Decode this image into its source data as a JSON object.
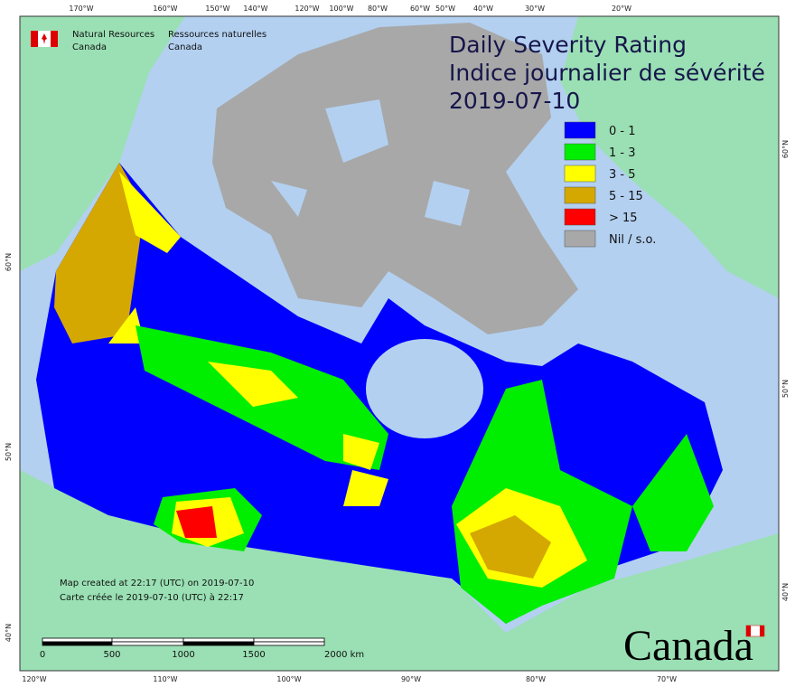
{
  "logo": {
    "en_line1": "Natural Resources",
    "en_line2": "Canada",
    "fr_line1": "Ressources naturelles",
    "fr_line2": "Canada"
  },
  "title": {
    "line1": "Daily Severity Rating",
    "line2": "Indice journalier de sévérité",
    "date": "2019-07-10"
  },
  "legend": [
    {
      "label": "0 - 1",
      "color": "#0000ff"
    },
    {
      "label": "1 - 3",
      "color": "#00ee00"
    },
    {
      "label": "3 - 5",
      "color": "#ffff00"
    },
    {
      "label": "5 - 15",
      "color": "#d4a800"
    },
    {
      "label": "> 15",
      "color": "#ff0000"
    },
    {
      "label": "Nil / s.o.",
      "color": "#a8a8a8"
    }
  ],
  "notes": [
    "Map created at 22:17 (UTC) on 2019-07-10",
    "Carte créée le 2019-07-10 (UTC) à 22:17"
  ],
  "scale_bar": [
    "0",
    "500",
    "1000",
    "1500",
    "2000  km"
  ],
  "graticule": {
    "top": [
      "170°W",
      "160°W",
      "150°W",
      "140°W",
      "120°W",
      "100°W",
      "80°W",
      "60°W",
      "50°W",
      "40°W",
      "30°W",
      "20°W"
    ],
    "bottom": [
      "120°W",
      "110°W",
      "100°W",
      "90°W",
      "80°W",
      "70°W"
    ],
    "left": [
      "60°N",
      "50°N",
      "40°N"
    ],
    "right": [
      "60°N",
      "50°N",
      "40°N"
    ]
  },
  "wordmark": "Canada"
}
